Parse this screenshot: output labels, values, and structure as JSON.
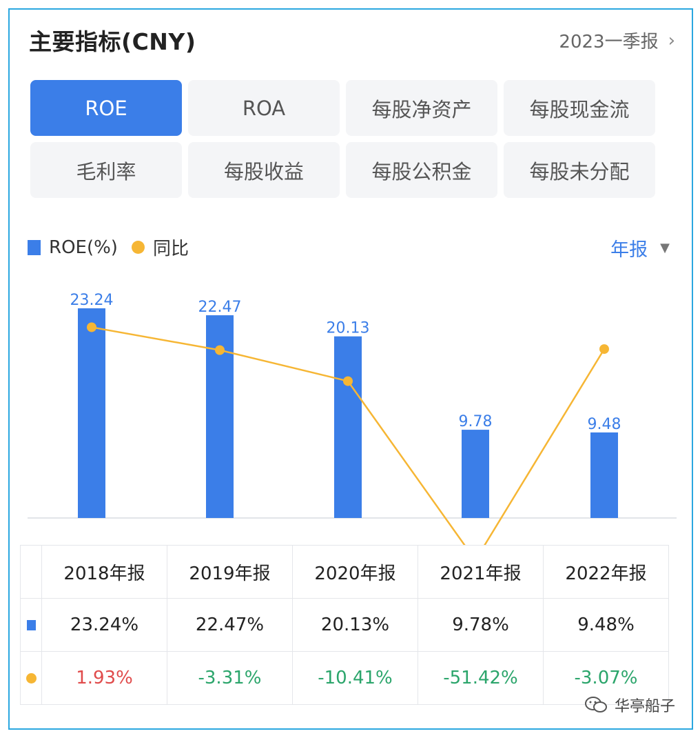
{
  "header": {
    "title": "主要指标(CNY)",
    "period_label": "2023一季报"
  },
  "tabs": [
    {
      "label": "ROE",
      "active": true
    },
    {
      "label": "ROA",
      "active": false
    },
    {
      "label": "每股净资产",
      "active": false
    },
    {
      "label": "每股现金流",
      "active": false
    },
    {
      "label": "毛利率",
      "active": false
    },
    {
      "label": "每股收益",
      "active": false
    },
    {
      "label": "每股公积金",
      "active": false
    },
    {
      "label": "每股未分配",
      "active": false
    }
  ],
  "legend": {
    "bar_label": "ROE(%)",
    "line_label": "同比"
  },
  "frequency_selector": "年报",
  "colors": {
    "bar": "#3b7ee8",
    "line": "#f6b634",
    "positive": "#e04b4b",
    "negative": "#2ba56b"
  },
  "chart_data": {
    "type": "bar",
    "categories": [
      "2018年报",
      "2019年报",
      "2020年报",
      "2021年报",
      "2022年报"
    ],
    "series": [
      {
        "name": "ROE(%)",
        "type": "bar",
        "values": [
          23.24,
          22.47,
          20.13,
          9.78,
          9.48
        ]
      },
      {
        "name": "同比",
        "type": "line",
        "values": [
          1.93,
          -3.31,
          -10.41,
          -51.42,
          -3.07
        ]
      }
    ],
    "bar_labels": [
      "23.24",
      "22.47",
      "20.13",
      "9.78",
      "9.48"
    ],
    "bar_ylim": [
      0,
      23.24
    ],
    "line_ylim": [
      -70,
      20
    ],
    "grid": false,
    "legend_position": "top-left"
  },
  "table": {
    "headers": [
      "2018年报",
      "2019年报",
      "2020年报",
      "2021年报",
      "2022年报"
    ],
    "roe_row": [
      "23.24%",
      "22.47%",
      "20.13%",
      "9.78%",
      "9.48%"
    ],
    "yoy_row": [
      "1.93%",
      "-3.31%",
      "-10.41%",
      "-51.42%",
      "-3.07%"
    ]
  },
  "watermark": "华亭船子"
}
